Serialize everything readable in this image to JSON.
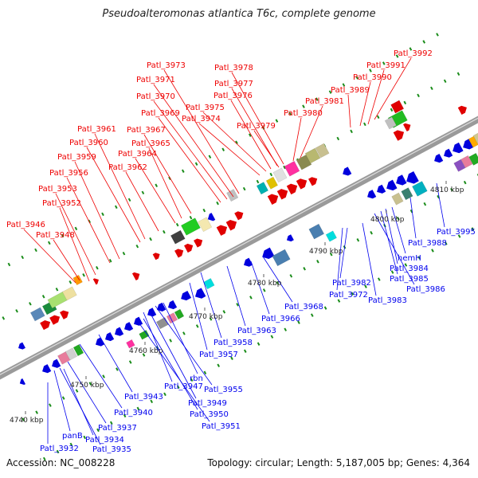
{
  "title": "Pseudoalteromonas atlantica T6c, complete genome",
  "footer": {
    "accession": "Accession: NC_008228",
    "topology": "Topology: circular; Length: 5,187,005 bp; Genes: 4,364"
  },
  "colors": {
    "upper_labels": "#ee0000",
    "lower_labels": "#0000ee",
    "backbone": "#888888",
    "dots": "#1a8c1a"
  },
  "scale_ticks": [
    {
      "text": "4740 kbp"
    },
    {
      "text": "4750 kbp"
    },
    {
      "text": "4760 kbp"
    },
    {
      "text": "4770 kbp"
    },
    {
      "text": "4780 kbp"
    },
    {
      "text": "4790 kbp"
    },
    {
      "text": "4800 kbp"
    },
    {
      "text": "4810 kbp"
    }
  ],
  "upper_labels": [
    {
      "text": "Patl_3992"
    },
    {
      "text": "Patl_3991"
    },
    {
      "text": "Patl_3990"
    },
    {
      "text": "Patl_3989"
    },
    {
      "text": "Patl_3981"
    },
    {
      "text": "Patl_3980"
    },
    {
      "text": "Patl_3979"
    },
    {
      "text": "Patl_3978"
    },
    {
      "text": "Patl_3977"
    },
    {
      "text": "Patl_3976"
    },
    {
      "text": "Patl_3975"
    },
    {
      "text": "Patl_3974"
    },
    {
      "text": "Patl_3973"
    },
    {
      "text": "Patl_3971"
    },
    {
      "text": "Patl_3970"
    },
    {
      "text": "Patl_3969"
    },
    {
      "text": "Patl_3967"
    },
    {
      "text": "Patl_3965"
    },
    {
      "text": "Patl_3964"
    },
    {
      "text": "Patl_3962"
    },
    {
      "text": "Patl_3961"
    },
    {
      "text": "Patl_3960"
    },
    {
      "text": "Patl_3959"
    },
    {
      "text": "Patl_3956"
    },
    {
      "text": "Patl_3953"
    },
    {
      "text": "Patl_3952"
    },
    {
      "text": "Patl_3946"
    },
    {
      "text": "Patl_3948"
    }
  ],
  "lower_labels": [
    {
      "text": "Patl_3995"
    },
    {
      "text": "Patl_3988"
    },
    {
      "text": "hemH"
    },
    {
      "text": "Patl_3984"
    },
    {
      "text": "Patl_3985"
    },
    {
      "text": "Patl_3986"
    },
    {
      "text": "Patl_3982"
    },
    {
      "text": "Patl_3972"
    },
    {
      "text": "Patl_3983"
    },
    {
      "text": "Patl_3968"
    },
    {
      "text": "Patl_3966"
    },
    {
      "text": "Patl_3963"
    },
    {
      "text": "Patl_3958"
    },
    {
      "text": "Patl_3957"
    },
    {
      "text": "rbn"
    },
    {
      "text": "Patl_3955"
    },
    {
      "text": "Patl_3947"
    },
    {
      "text": "Patl_3949"
    },
    {
      "text": "Patl_3943"
    },
    {
      "text": "Patl_3950"
    },
    {
      "text": "Patl_3940"
    },
    {
      "text": "Patl_3951"
    },
    {
      "text": "Patl_3937"
    },
    {
      "text": "panB"
    },
    {
      "text": "Patl_3934"
    },
    {
      "text": "Patl_3932"
    },
    {
      "text": "Patl_3935"
    }
  ]
}
